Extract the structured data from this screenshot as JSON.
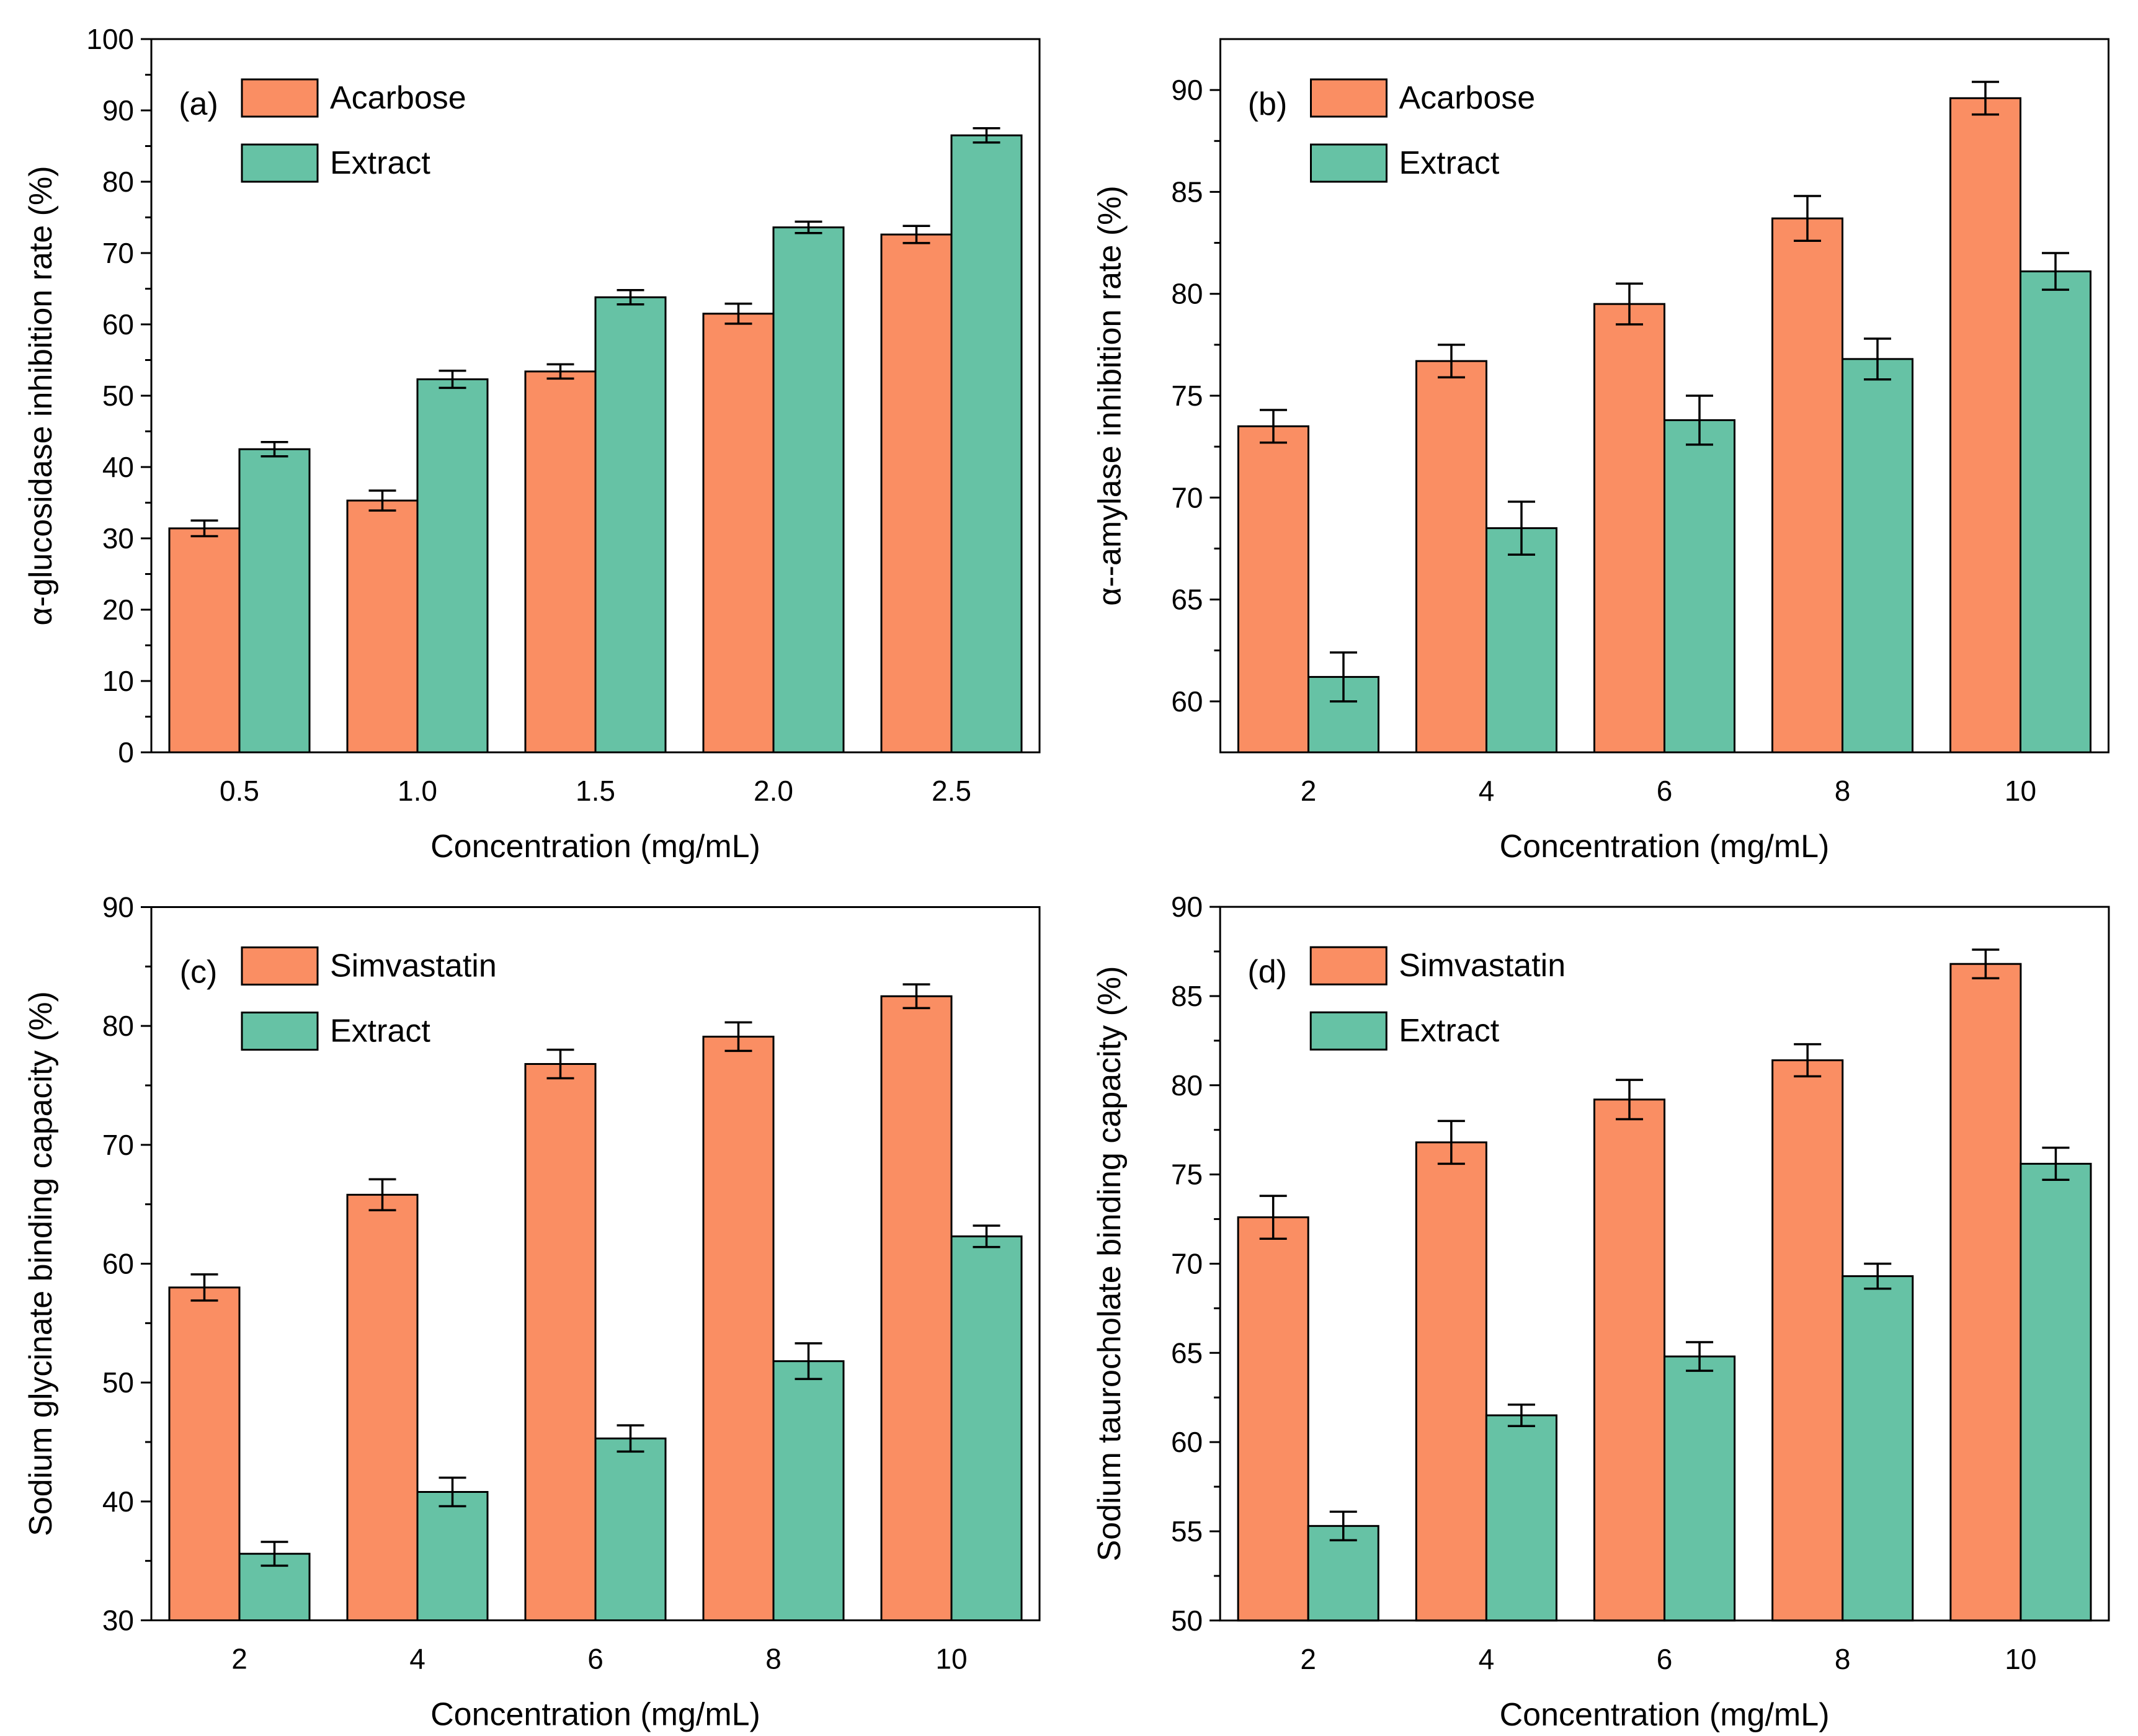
{
  "figure_background": "#ffffff",
  "frame_color": "#000000",
  "error_bar_color": "#000000",
  "chart_data": [
    {
      "type": "bar",
      "panel_label": "(a)",
      "xlabel": "Concentration (mg/mL)",
      "ylabel": "α-glucosidase inhibition rate (%)",
      "categories": [
        "0.5",
        "1.0",
        "1.5",
        "2.0",
        "2.5"
      ],
      "ylim": [
        0,
        100
      ],
      "yticks": [
        0,
        10,
        20,
        30,
        40,
        50,
        60,
        70,
        80,
        90,
        100
      ],
      "yminorticks": [
        5,
        15,
        25,
        35,
        45,
        55,
        65,
        75,
        85,
        95
      ],
      "grid": false,
      "legend_position": "top-left-inside",
      "series": [
        {
          "name": "Acarbose",
          "color": "#FA8E63",
          "values": [
            31.4,
            35.3,
            53.4,
            61.5,
            72.6
          ],
          "errors": [
            1.1,
            1.4,
            1.0,
            1.4,
            1.2
          ]
        },
        {
          "name": "Extract",
          "color": "#66C2A5",
          "values": [
            42.5,
            52.3,
            63.8,
            73.6,
            86.5
          ],
          "errors": [
            1.0,
            1.2,
            1.0,
            0.8,
            1.0
          ]
        }
      ]
    },
    {
      "type": "bar",
      "panel_label": "(b)",
      "xlabel": "Concentration (mg/mL)",
      "ylabel": "α--amylase inhibition rate (%)",
      "categories": [
        "2",
        "4",
        "6",
        "8",
        "10"
      ],
      "ylim": [
        57.5,
        92.5
      ],
      "yticks": [
        60,
        65,
        70,
        75,
        80,
        85,
        90
      ],
      "yminorticks": [
        62.5,
        67.5,
        72.5,
        77.5,
        82.5,
        87.5
      ],
      "grid": false,
      "legend_position": "top-left-inside",
      "series": [
        {
          "name": "Acarbose",
          "color": "#FA8E63",
          "values": [
            73.5,
            76.7,
            79.5,
            83.7,
            89.6
          ],
          "errors": [
            0.8,
            0.8,
            1.0,
            1.1,
            0.8
          ]
        },
        {
          "name": "Extract",
          "color": "#66C2A5",
          "values": [
            61.2,
            68.5,
            73.8,
            76.8,
            81.1
          ],
          "errors": [
            1.2,
            1.3,
            1.2,
            1.0,
            0.9
          ]
        }
      ]
    },
    {
      "type": "bar",
      "panel_label": "(c)",
      "xlabel": "Concentration (mg/mL)",
      "ylabel": "Sodium glycinate binding capacity (%)",
      "categories": [
        "2",
        "4",
        "6",
        "8",
        "10"
      ],
      "ylim": [
        30,
        90
      ],
      "yticks": [
        30,
        40,
        50,
        60,
        70,
        80,
        90
      ],
      "yminorticks": [
        35,
        45,
        55,
        65,
        75,
        85
      ],
      "grid": false,
      "legend_position": "top-left-inside",
      "series": [
        {
          "name": "Simvastatin",
          "color": "#FA8E63",
          "values": [
            58.0,
            65.8,
            76.8,
            79.1,
            82.5
          ],
          "errors": [
            1.1,
            1.3,
            1.2,
            1.2,
            1.0
          ]
        },
        {
          "name": "Extract",
          "color": "#66C2A5",
          "values": [
            35.6,
            40.8,
            45.3,
            51.8,
            62.3
          ],
          "errors": [
            1.0,
            1.2,
            1.1,
            1.5,
            0.9
          ]
        }
      ]
    },
    {
      "type": "bar",
      "panel_label": "(d)",
      "xlabel": "Concentration (mg/mL)",
      "ylabel": "Sodium taurocholate binding capacity (%)",
      "categories": [
        "2",
        "4",
        "6",
        "8",
        "10"
      ],
      "ylim": [
        50,
        90
      ],
      "yticks": [
        50,
        55,
        60,
        65,
        70,
        75,
        80,
        85,
        90
      ],
      "yminorticks": [
        52.5,
        57.5,
        62.5,
        67.5,
        72.5,
        77.5,
        82.5,
        87.5
      ],
      "grid": false,
      "legend_position": "top-left-inside",
      "series": [
        {
          "name": "Simvastatin",
          "color": "#FA8E63",
          "values": [
            72.6,
            76.8,
            79.2,
            81.4,
            86.8
          ],
          "errors": [
            1.2,
            1.2,
            1.1,
            0.9,
            0.8
          ]
        },
        {
          "name": "Extract",
          "color": "#66C2A5",
          "values": [
            55.3,
            61.5,
            64.8,
            69.3,
            75.6
          ],
          "errors": [
            0.8,
            0.6,
            0.8,
            0.7,
            0.9
          ]
        }
      ]
    }
  ]
}
